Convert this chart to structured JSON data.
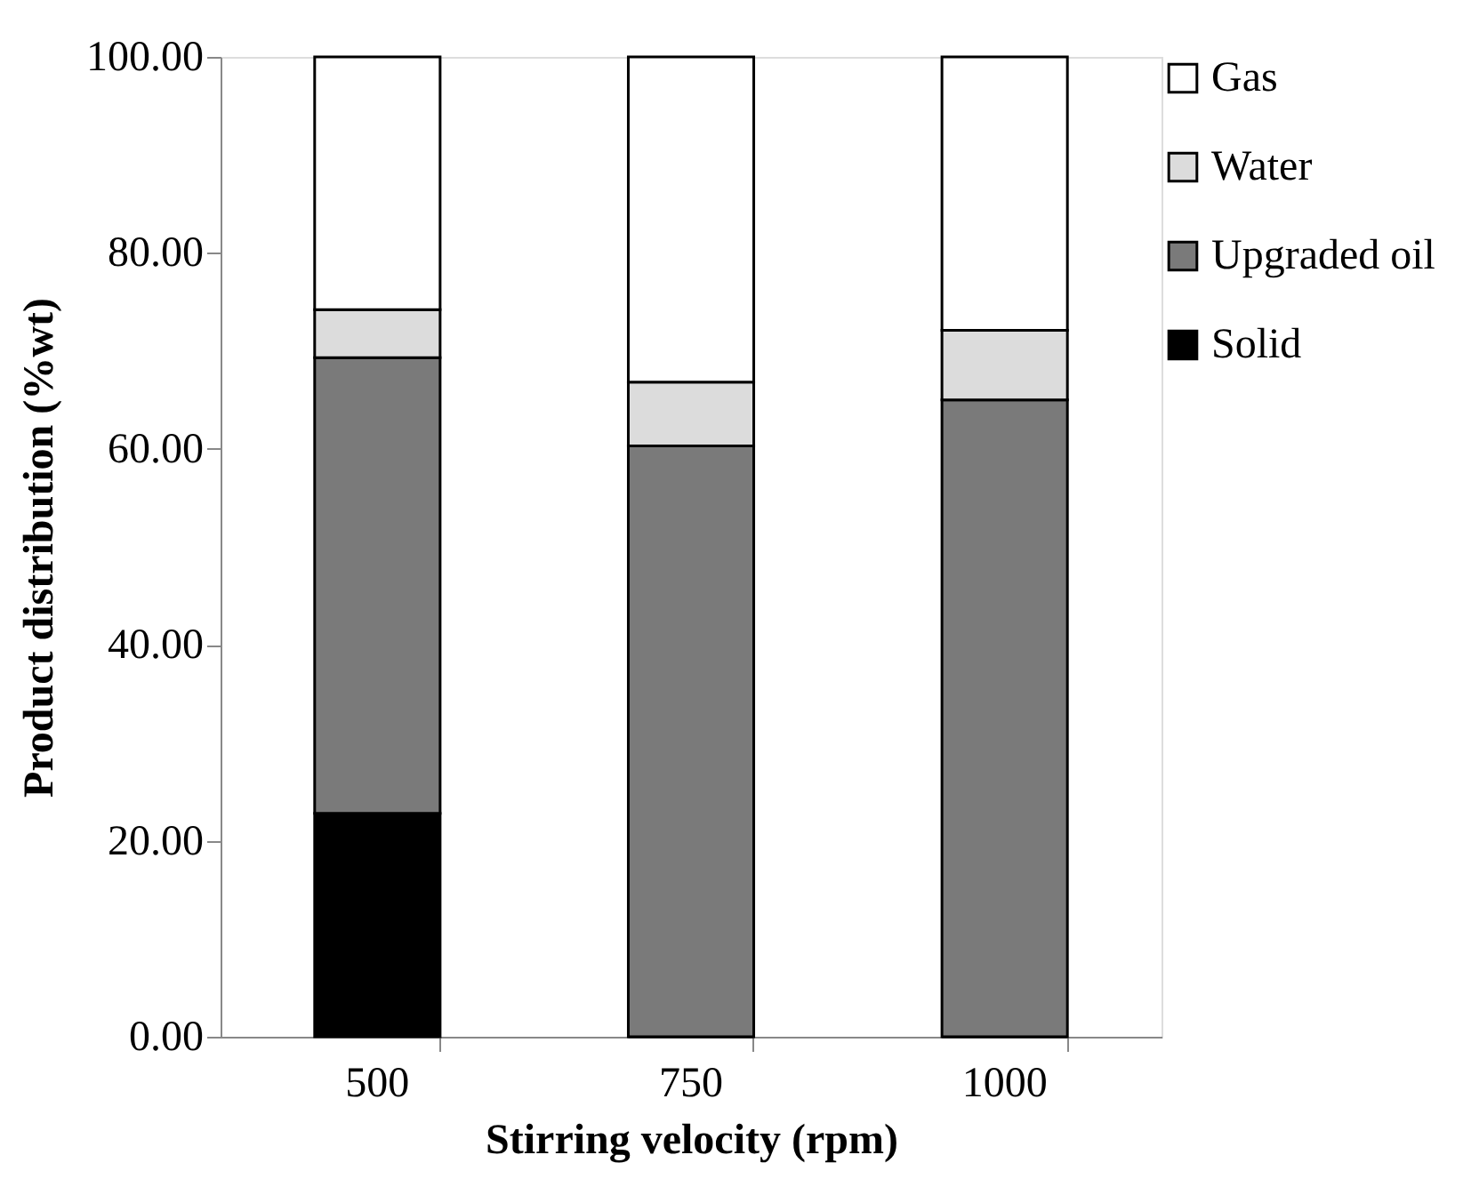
{
  "chart_data": {
    "type": "bar",
    "stacked": true,
    "xlabel": "Stirring velocity (rpm)",
    "ylabel": "Product distribution (%wt)",
    "categories": [
      "500",
      "750",
      "1000"
    ],
    "series": [
      {
        "name": "Solid",
        "color": "#000000",
        "values": [
          22.8,
          0,
          0
        ]
      },
      {
        "name": "Upgraded oil",
        "color": "#7a7a7a",
        "values": [
          46.5,
          60.3,
          65.0
        ]
      },
      {
        "name": "Water",
        "color": "#dcdcdc",
        "values": [
          4.9,
          6.5,
          7.1
        ]
      },
      {
        "name": "Gas",
        "color": "#ffffff",
        "values": [
          25.8,
          33.2,
          27.9
        ]
      }
    ],
    "ylim": [
      0,
      100
    ],
    "yticks": [
      {
        "value": 0,
        "label": "0.00"
      },
      {
        "value": 20,
        "label": "20.00"
      },
      {
        "value": 40,
        "label": "40.00"
      },
      {
        "value": 60,
        "label": "60.00"
      },
      {
        "value": 80,
        "label": "80.00"
      },
      {
        "value": 100,
        "label": "100.00"
      }
    ],
    "grid": false,
    "legend": "right"
  }
}
